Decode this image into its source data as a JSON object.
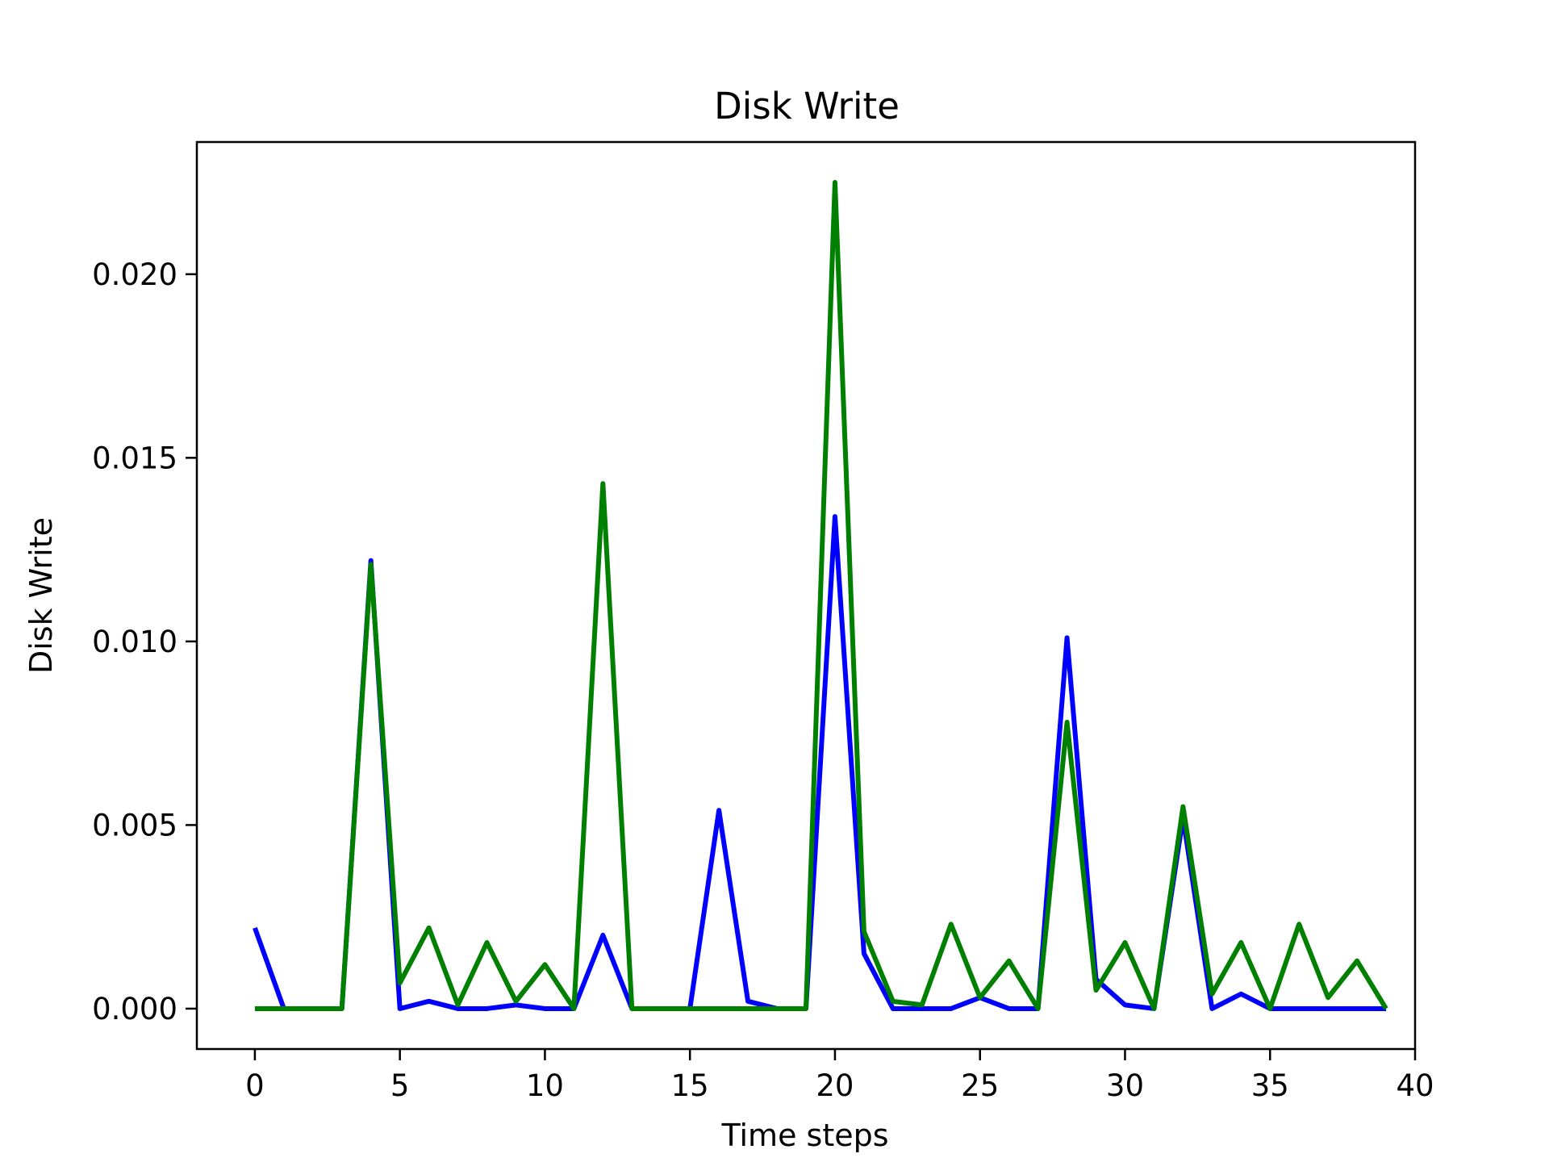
{
  "chart_data": {
    "type": "line",
    "title": "Disk Write",
    "xlabel": "Time steps",
    "ylabel": "Disk Write",
    "xlim": [
      -2,
      40
    ],
    "ylim": [
      -0.0011,
      0.0236
    ],
    "xticks": [
      0,
      5,
      10,
      15,
      20,
      25,
      30,
      35,
      40
    ],
    "xtick_labels": [
      "0",
      "5",
      "10",
      "15",
      "20",
      "25",
      "30",
      "35",
      "40"
    ],
    "yticks": [
      0.0,
      0.005,
      0.01,
      0.015,
      0.02
    ],
    "ytick_labels": [
      "0.000",
      "0.005",
      "0.010",
      "0.015",
      "0.020"
    ],
    "grid": false,
    "legend": null,
    "x": [
      0,
      1,
      2,
      3,
      4,
      5,
      6,
      7,
      8,
      9,
      10,
      11,
      12,
      13,
      14,
      15,
      16,
      17,
      18,
      19,
      20,
      21,
      22,
      23,
      24,
      25,
      26,
      27,
      28,
      29,
      30,
      31,
      32,
      33,
      34,
      35,
      36,
      37,
      38,
      39
    ],
    "series": [
      {
        "color": "#0000ff",
        "values": [
          0.0022,
          0.0,
          0.0,
          0.0,
          0.0122,
          0.0,
          0.0002,
          0.0,
          0.0,
          0.0001,
          0.0,
          0.0,
          0.002,
          0.0,
          0.0,
          0.0,
          0.0054,
          0.0002,
          0.0,
          0.0,
          0.0134,
          0.0015,
          0.0,
          0.0,
          0.0,
          0.0003,
          0.0,
          0.0,
          0.0101,
          0.0008,
          0.0001,
          0.0,
          0.0052,
          0.0,
          0.0004,
          0.0,
          0.0,
          0.0,
          0.0,
          0.0
        ]
      },
      {
        "color": "#008000",
        "values": [
          0.0,
          0.0,
          0.0,
          0.0,
          0.0121,
          0.0007,
          0.0022,
          0.0001,
          0.0018,
          0.0002,
          0.0012,
          0.0,
          0.0143,
          0.0,
          0.0,
          0.0,
          0.0,
          0.0,
          0.0,
          0.0,
          0.0225,
          0.0021,
          0.0002,
          0.0001,
          0.0023,
          0.0003,
          0.0013,
          0.0,
          0.0078,
          0.0005,
          0.0018,
          0.0,
          0.0055,
          0.0004,
          0.0018,
          0.0,
          0.0023,
          0.0003,
          0.0013,
          0.0
        ]
      }
    ]
  }
}
